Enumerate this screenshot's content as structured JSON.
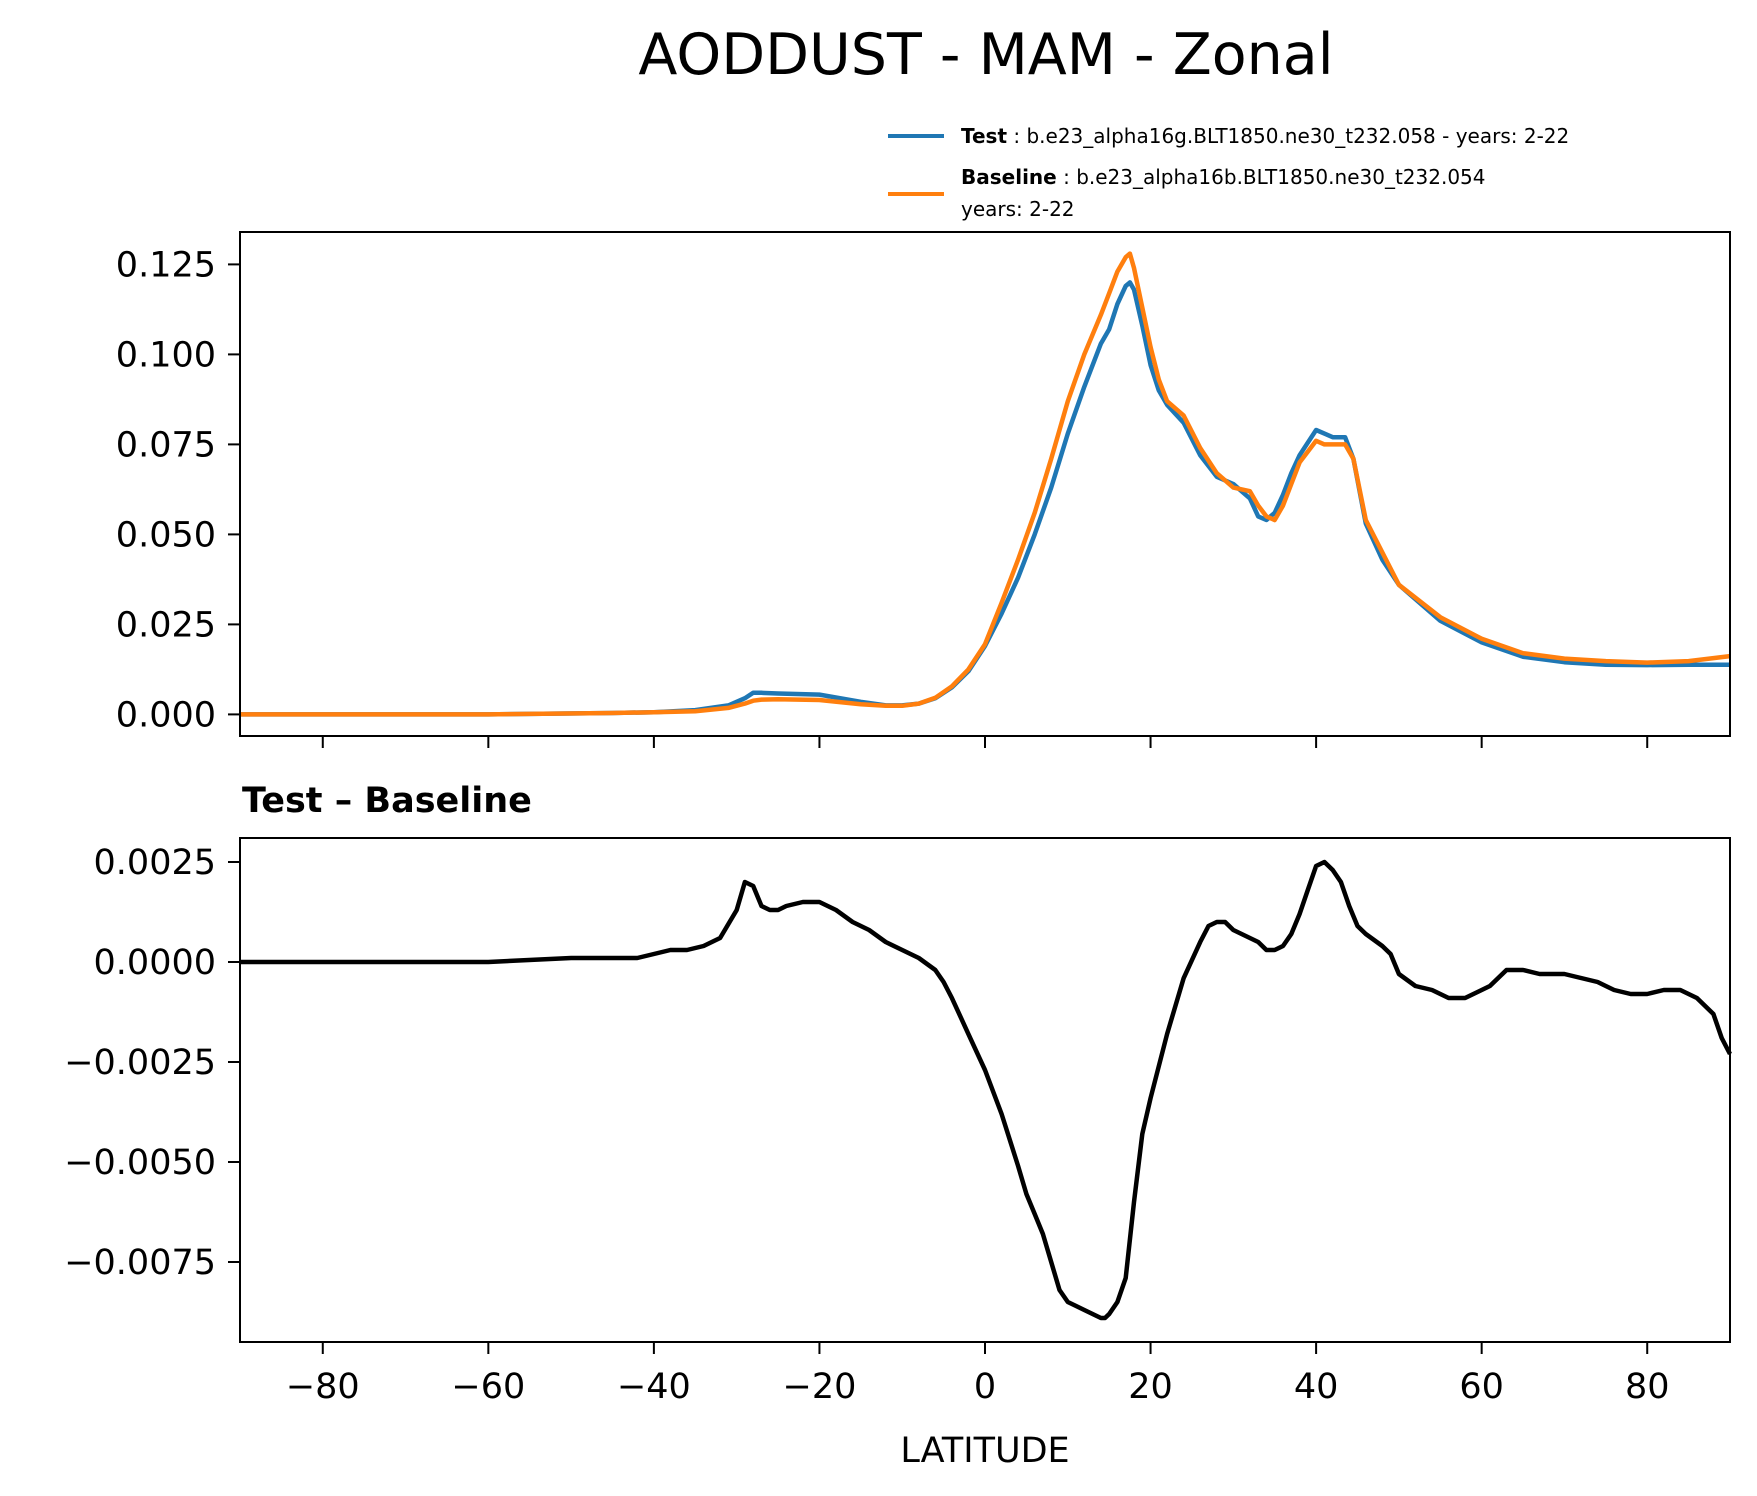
{
  "figure": {
    "title": "AODDUST - MAM - Zonal"
  },
  "legend": {
    "placement": "above top panel, right",
    "entries": [
      {
        "bold_label": "Test",
        "separator": " : ",
        "text": "b.e23_alpha16g.BLT1850.ne30_t232.058 - years: 2-22",
        "color": "#1f77b4"
      },
      {
        "bold_label": "Baseline",
        "separator": " : ",
        "text": "b.e23_alpha16b.BLT1850.ne30_t232.054",
        "text2": "years: 2-22",
        "color": "#ff7f0e"
      }
    ]
  },
  "chart_data": [
    {
      "type": "line",
      "title": "",
      "xlabel": "",
      "ylabel": "",
      "xlim": [
        -90,
        90
      ],
      "ylim": [
        -0.006,
        0.134
      ],
      "x_ticks": [
        -80,
        -60,
        -40,
        -20,
        0,
        20,
        40,
        60,
        80
      ],
      "y_ticks": [
        0.0,
        0.025,
        0.05,
        0.075,
        0.1,
        0.125
      ],
      "y_tick_labels": [
        "0.000",
        "0.025",
        "0.050",
        "0.075",
        "0.100",
        "0.125"
      ],
      "grid": false,
      "series": [
        {
          "name": "Test",
          "color": "#1f77b4",
          "x": [
            -90,
            -60,
            -45,
            -40,
            -35,
            -31,
            -29,
            -28,
            -27,
            -25,
            -20,
            -15,
            -12,
            -10,
            -8,
            -6,
            -4,
            -2,
            0,
            2,
            4,
            6,
            8,
            10,
            12,
            14,
            15,
            16,
            17,
            17.5,
            18,
            19,
            20,
            21,
            22,
            24,
            26,
            28,
            30,
            32,
            33,
            34,
            35,
            36,
            37,
            38,
            40,
            41,
            42,
            43.5,
            44.5,
            46,
            48,
            50,
            55,
            60,
            65,
            70,
            75,
            80,
            85,
            90
          ],
          "values": [
            0.0,
            0.0,
            0.0004,
            0.0006,
            0.0012,
            0.0025,
            0.0045,
            0.006,
            0.006,
            0.0058,
            0.0055,
            0.0035,
            0.0025,
            0.0025,
            0.003,
            0.0045,
            0.0075,
            0.012,
            0.019,
            0.028,
            0.038,
            0.05,
            0.063,
            0.078,
            0.091,
            0.103,
            0.107,
            0.114,
            0.119,
            0.12,
            0.118,
            0.108,
            0.097,
            0.09,
            0.086,
            0.081,
            0.072,
            0.066,
            0.064,
            0.06,
            0.055,
            0.054,
            0.056,
            0.061,
            0.067,
            0.072,
            0.079,
            0.078,
            0.077,
            0.077,
            0.071,
            0.053,
            0.043,
            0.036,
            0.026,
            0.02,
            0.016,
            0.0145,
            0.0138,
            0.0137,
            0.0138,
            0.0138
          ]
        },
        {
          "name": "Baseline",
          "color": "#ff7f0e",
          "x": [
            -90,
            -60,
            -45,
            -40,
            -35,
            -31,
            -29,
            -28,
            -27,
            -25,
            -20,
            -15,
            -12,
            -10,
            -8,
            -6,
            -4,
            -2,
            0,
            2,
            4,
            6,
            8,
            10,
            12,
            14,
            15,
            16,
            17,
            17.5,
            18,
            19,
            20,
            21,
            22,
            24,
            26,
            28,
            30,
            32,
            33,
            34,
            35,
            36,
            37,
            38,
            40,
            41,
            42,
            43.5,
            44.5,
            46,
            48,
            50,
            55,
            60,
            65,
            70,
            75,
            80,
            85,
            90
          ],
          "values": [
            0.0,
            0.0,
            0.0004,
            0.0006,
            0.0009,
            0.0018,
            0.003,
            0.0038,
            0.0041,
            0.0042,
            0.004,
            0.0028,
            0.0024,
            0.0024,
            0.003,
            0.0046,
            0.0078,
            0.0125,
            0.0195,
            0.031,
            0.043,
            0.056,
            0.071,
            0.087,
            0.1,
            0.111,
            0.117,
            0.123,
            0.127,
            0.128,
            0.124,
            0.113,
            0.102,
            0.093,
            0.087,
            0.083,
            0.074,
            0.067,
            0.063,
            0.062,
            0.058,
            0.055,
            0.054,
            0.058,
            0.064,
            0.07,
            0.076,
            0.075,
            0.075,
            0.075,
            0.071,
            0.054,
            0.045,
            0.036,
            0.027,
            0.021,
            0.017,
            0.0155,
            0.0148,
            0.0144,
            0.0148,
            0.0162
          ]
        }
      ]
    },
    {
      "type": "line",
      "title": "Test – Baseline",
      "xlabel": "LATITUDE",
      "ylabel": "",
      "xlim": [
        -90,
        90
      ],
      "ylim": [
        -0.0095,
        0.0031
      ],
      "x_ticks": [
        -80,
        -60,
        -40,
        -20,
        0,
        20,
        40,
        60,
        80
      ],
      "x_tick_labels": [
        "−80",
        "−60",
        "−40",
        "−20",
        "0",
        "20",
        "40",
        "60",
        "80"
      ],
      "y_ticks": [
        0.0025,
        0.0,
        -0.0025,
        -0.005,
        -0.0075
      ],
      "y_tick_labels": [
        "0.0025",
        "0.0000",
        "−0.0025",
        "−0.0050",
        "−0.0075"
      ],
      "grid": false,
      "series": [
        {
          "color": "#000000",
          "x": [
            -90,
            -70,
            -60,
            -50,
            -45,
            -42,
            -40,
            -38,
            -36,
            -34,
            -32,
            -30,
            -29,
            -28,
            -27,
            -26,
            -25,
            -24,
            -22,
            -20,
            -18,
            -16,
            -14,
            -12,
            -10,
            -8,
            -6,
            -5,
            -4,
            -2,
            0,
            2,
            4,
            5,
            6,
            7,
            8,
            9,
            10,
            11,
            12,
            13,
            14,
            14.5,
            15,
            16,
            17,
            18,
            19,
            20,
            22,
            24,
            26,
            27,
            28,
            29,
            30,
            31,
            33,
            34,
            35,
            36,
            37,
            38,
            39,
            40,
            41,
            42,
            43,
            44,
            45,
            46,
            48,
            49,
            50,
            52,
            54,
            55,
            56,
            58,
            60,
            61,
            62,
            63,
            65,
            67,
            68,
            70,
            72,
            74,
            75,
            76,
            78,
            80,
            82,
            84,
            86,
            88,
            89,
            90
          ],
          "values": [
            0.0,
            0.0,
            0.0,
            0.0001,
            0.0001,
            0.0001,
            0.0002,
            0.0003,
            0.0003,
            0.0004,
            0.0006,
            0.0013,
            0.002,
            0.0019,
            0.0014,
            0.0013,
            0.0013,
            0.0014,
            0.0015,
            0.0015,
            0.0013,
            0.001,
            0.0008,
            0.0005,
            0.0003,
            0.0001,
            -0.0002,
            -0.0005,
            -0.0009,
            -0.0018,
            -0.0027,
            -0.0038,
            -0.0051,
            -0.0058,
            -0.0063,
            -0.0068,
            -0.0075,
            -0.0082,
            -0.0085,
            -0.0086,
            -0.0087,
            -0.0088,
            -0.0089,
            -0.0089,
            -0.0088,
            -0.0085,
            -0.0079,
            -0.006,
            -0.0043,
            -0.0034,
            -0.0018,
            -0.0004,
            0.0005,
            0.0009,
            0.001,
            0.001,
            0.0008,
            0.0007,
            0.0005,
            0.0003,
            0.0003,
            0.0004,
            0.0007,
            0.0012,
            0.0018,
            0.0024,
            0.0025,
            0.0023,
            0.002,
            0.0014,
            0.0009,
            0.0007,
            0.0004,
            0.0002,
            -0.0003,
            -0.0006,
            -0.0007,
            -0.0008,
            -0.0009,
            -0.0009,
            -0.0007,
            -0.0006,
            -0.0004,
            -0.0002,
            -0.0002,
            -0.0003,
            -0.0003,
            -0.0003,
            -0.0004,
            -0.0005,
            -0.0006,
            -0.0007,
            -0.0008,
            -0.0008,
            -0.0007,
            -0.0007,
            -0.0009,
            -0.0013,
            -0.0019,
            -0.0023
          ]
        }
      ]
    }
  ]
}
